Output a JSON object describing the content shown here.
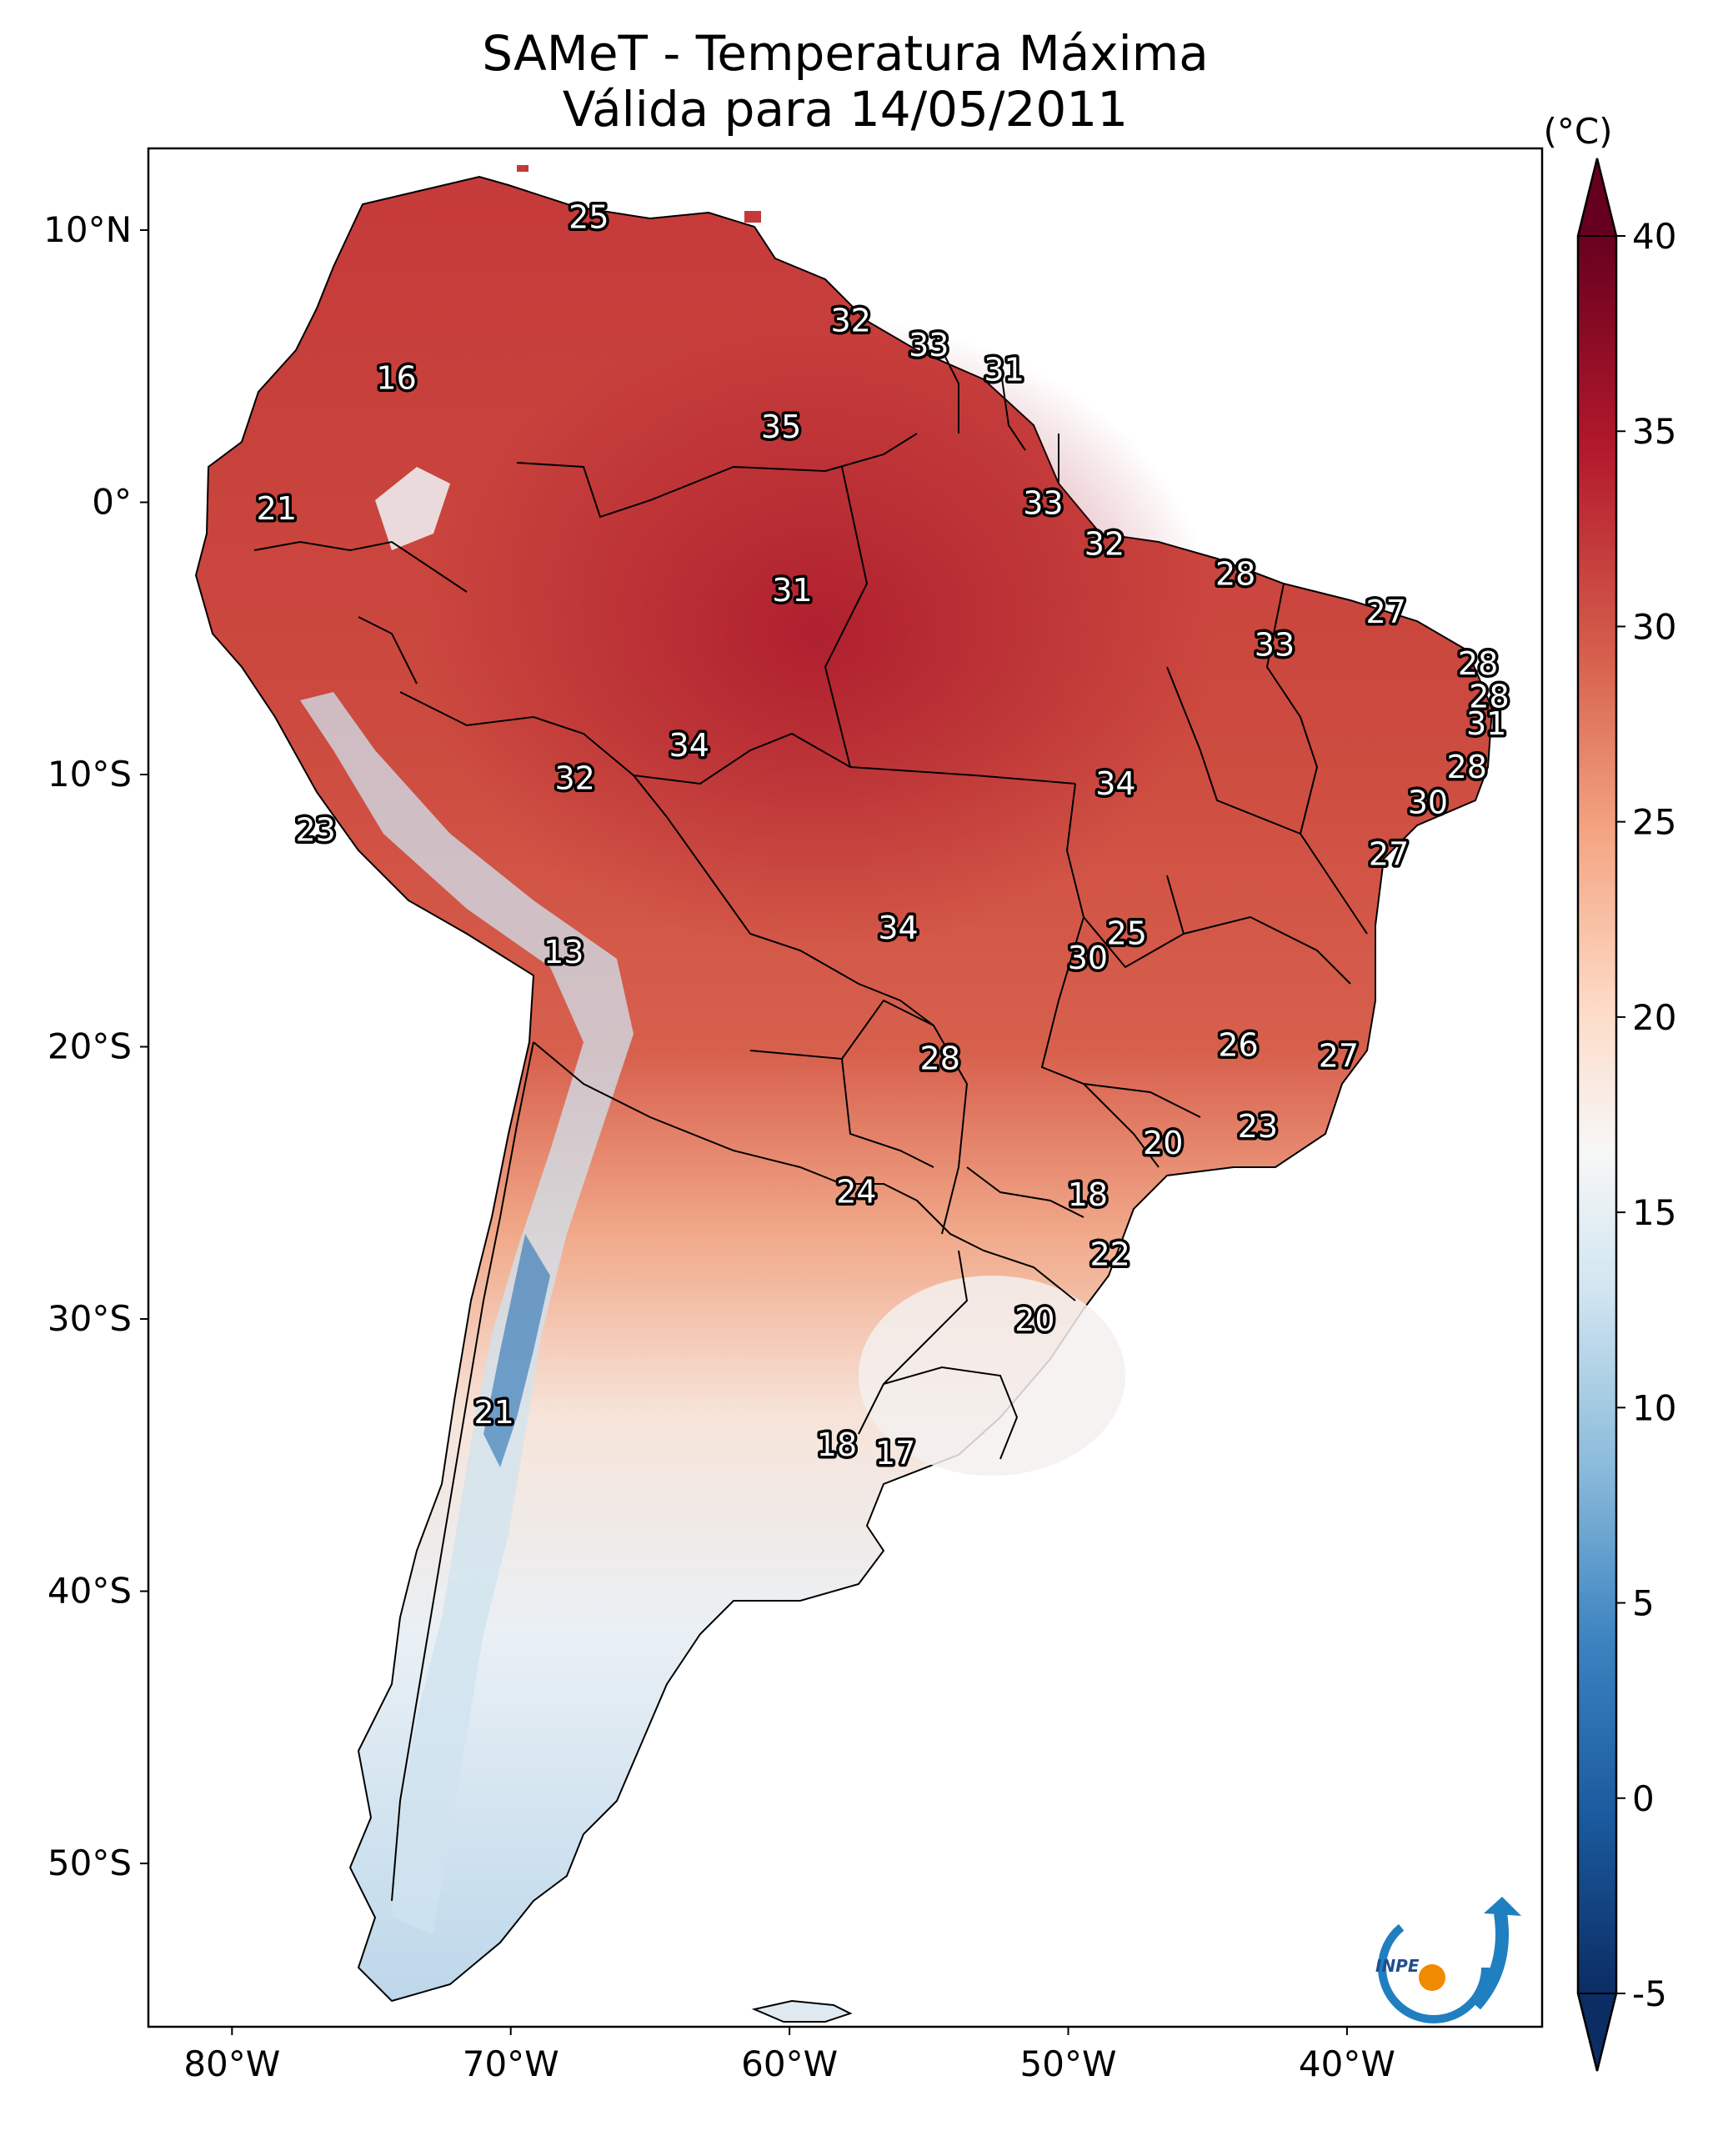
{
  "title_line1": "SAMeT - Temperatura Máxima",
  "title_line2": "Válida para 14/05/2011",
  "colorbar": {
    "unit": "(°C)",
    "min": -5,
    "max": 40,
    "extend": "both",
    "cmap": "RdBu_r",
    "ticks": [
      {
        "value": 40,
        "label": "40"
      },
      {
        "value": 35,
        "label": "35"
      },
      {
        "value": 30,
        "label": "30"
      },
      {
        "value": 25,
        "label": "25"
      },
      {
        "value": 20,
        "label": "20"
      },
      {
        "value": 15,
        "label": "15"
      },
      {
        "value": 10,
        "label": "10"
      },
      {
        "value": 5,
        "label": "5"
      },
      {
        "value": 0,
        "label": "0"
      },
      {
        "value": -5,
        "label": "-5"
      }
    ],
    "colors": [
      "#0b2d63",
      "#2166ac",
      "#6fa8d1",
      "#d1e5f0",
      "#f7f7f7",
      "#fddbc7",
      "#ef8a62",
      "#d6604d",
      "#b2182b",
      "#67001f"
    ]
  },
  "map": {
    "extent_lon": [
      -83,
      -33
    ],
    "extent_lat": [
      -56,
      13
    ],
    "lon_ticks": [
      {
        "value": -80,
        "label": "80°W"
      },
      {
        "value": -70,
        "label": "70°W"
      },
      {
        "value": -60,
        "label": "60°W"
      },
      {
        "value": -50,
        "label": "50°W"
      },
      {
        "value": -40,
        "label": "40°W"
      }
    ],
    "lat_ticks": [
      {
        "value": 10,
        "label": "10°N"
      },
      {
        "value": 0,
        "label": "0°"
      },
      {
        "value": -10,
        "label": "10°S"
      },
      {
        "value": -20,
        "label": "20°S"
      },
      {
        "value": -30,
        "label": "30°S"
      },
      {
        "value": -40,
        "label": "40°S"
      },
      {
        "value": -50,
        "label": "50°S"
      }
    ],
    "city_labels": [
      {
        "lon": -67.2,
        "lat": 10.5,
        "value": "25"
      },
      {
        "lon": -57.8,
        "lat": 6.7,
        "value": "32"
      },
      {
        "lon": -55.0,
        "lat": 5.8,
        "value": "33"
      },
      {
        "lon": -52.3,
        "lat": 4.9,
        "value": "31"
      },
      {
        "lon": -74.1,
        "lat": 4.6,
        "value": "16"
      },
      {
        "lon": -60.3,
        "lat": 2.8,
        "value": "35"
      },
      {
        "lon": -78.4,
        "lat": -0.2,
        "value": "21"
      },
      {
        "lon": -50.9,
        "lat": 0.0,
        "value": "33"
      },
      {
        "lon": -48.7,
        "lat": -1.5,
        "value": "32"
      },
      {
        "lon": -44.0,
        "lat": -2.6,
        "value": "28"
      },
      {
        "lon": -59.9,
        "lat": -3.2,
        "value": "31"
      },
      {
        "lon": -38.6,
        "lat": -4.0,
        "value": "27"
      },
      {
        "lon": -42.6,
        "lat": -5.2,
        "value": "33"
      },
      {
        "lon": -35.3,
        "lat": -5.9,
        "value": "28"
      },
      {
        "lon": -34.9,
        "lat": -7.1,
        "value": "28"
      },
      {
        "lon": -35.0,
        "lat": -8.1,
        "value": "31"
      },
      {
        "lon": -63.6,
        "lat": -8.9,
        "value": "34"
      },
      {
        "lon": -35.7,
        "lat": -9.7,
        "value": "28"
      },
      {
        "lon": -67.7,
        "lat": -10.1,
        "value": "32"
      },
      {
        "lon": -48.3,
        "lat": -10.3,
        "value": "34"
      },
      {
        "lon": -37.1,
        "lat": -11.0,
        "value": "30"
      },
      {
        "lon": -77.0,
        "lat": -12.0,
        "value": "23"
      },
      {
        "lon": -38.5,
        "lat": -12.9,
        "value": "27"
      },
      {
        "lon": -56.1,
        "lat": -15.6,
        "value": "34"
      },
      {
        "lon": -47.9,
        "lat": -15.8,
        "value": "25"
      },
      {
        "lon": -49.3,
        "lat": -16.7,
        "value": "30"
      },
      {
        "lon": -68.1,
        "lat": -16.5,
        "value": "13"
      },
      {
        "lon": -43.9,
        "lat": -19.9,
        "value": "26"
      },
      {
        "lon": -40.3,
        "lat": -20.3,
        "value": "27"
      },
      {
        "lon": -54.6,
        "lat": -20.4,
        "value": "28"
      },
      {
        "lon": -43.2,
        "lat": -22.9,
        "value": "23"
      },
      {
        "lon": -46.6,
        "lat": -23.5,
        "value": "20"
      },
      {
        "lon": -57.6,
        "lat": -25.3,
        "value": "24"
      },
      {
        "lon": -49.3,
        "lat": -25.4,
        "value": "18"
      },
      {
        "lon": -48.5,
        "lat": -27.6,
        "value": "22"
      },
      {
        "lon": -51.2,
        "lat": -30.0,
        "value": "20"
      },
      {
        "lon": -70.6,
        "lat": -33.4,
        "value": "21"
      },
      {
        "lon": -58.3,
        "lat": -34.6,
        "value": "18"
      },
      {
        "lon": -56.2,
        "lat": -34.9,
        "value": "17"
      }
    ],
    "logo_text": "INPE"
  }
}
